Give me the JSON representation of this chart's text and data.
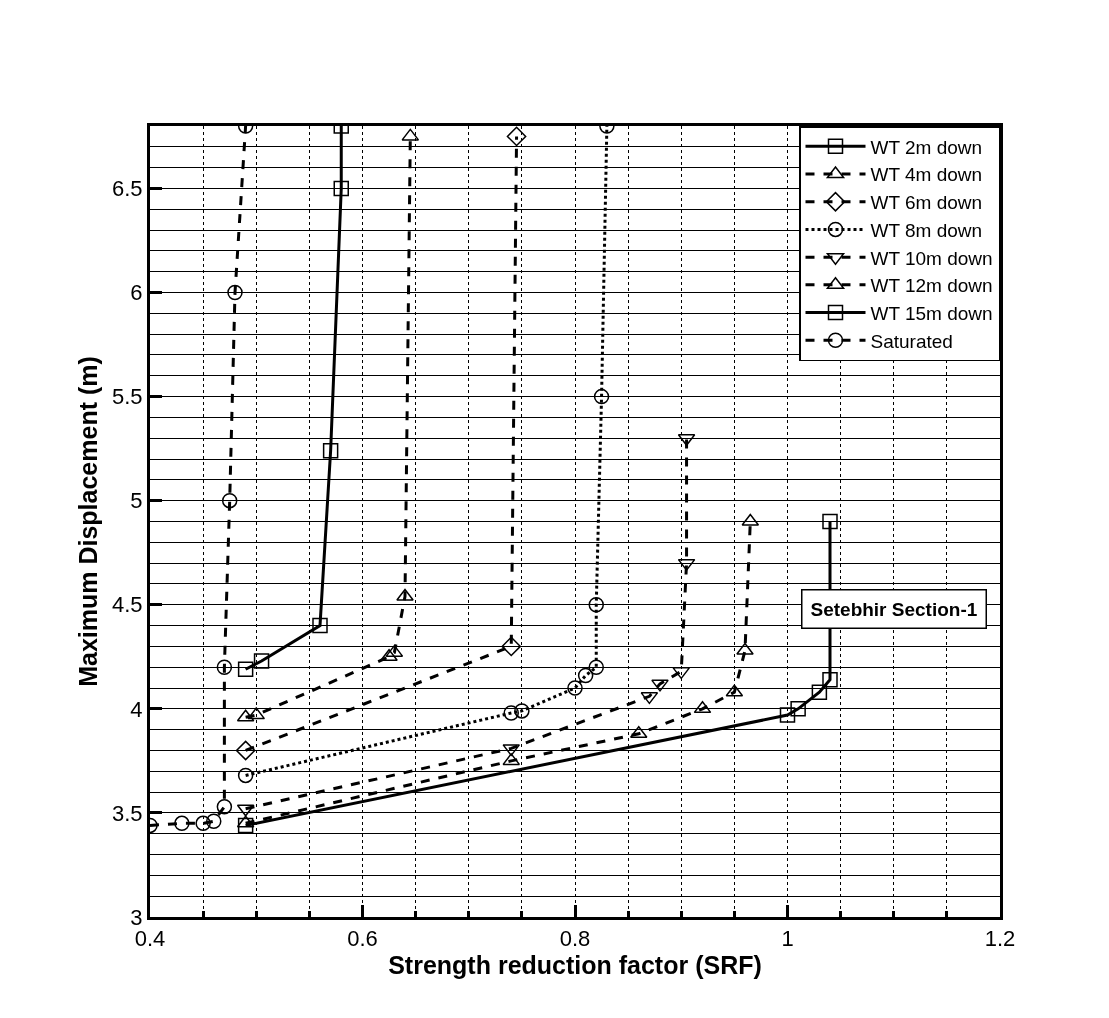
{
  "chart_data": {
    "type": "line",
    "xlabel": "Strength reduction factor (SRF)",
    "ylabel": "Maximum Displacement (m)",
    "xlim": [
      0.4,
      1.2
    ],
    "xticks": [
      0.4,
      0.6,
      0.8,
      1,
      1.2
    ],
    "ylim": [
      3,
      6.8
    ],
    "yticks": [
      3,
      3.5,
      4,
      4.5,
      5,
      5.5,
      6,
      6.5
    ],
    "grid": true,
    "legend": "top right",
    "annotations": [
      "Setebhir Section-1"
    ],
    "series": [
      {
        "name": "WT 2m down",
        "color": "#000000",
        "marker": "square",
        "line_style": "solid",
        "x": [
          0.49,
          0.505,
          0.56,
          0.57,
          0.58,
          0.58
        ],
        "values": [
          4.19,
          4.23,
          4.4,
          5.24,
          6.5,
          6.8
        ]
      },
      {
        "name": "WT 4m down",
        "color": "#000000",
        "marker": "triangle",
        "line_style": "dashed",
        "x": [
          0.49,
          0.5,
          0.625,
          0.63,
          0.64,
          0.645
        ],
        "values": [
          3.96,
          3.97,
          4.25,
          4.27,
          4.54,
          6.75
        ]
      },
      {
        "name": "WT 6m down",
        "color": "#000000",
        "marker": "diamond",
        "line_style": "dashed",
        "x": [
          0.49,
          0.74,
          0.745
        ],
        "values": [
          3.8,
          4.3,
          6.75
        ]
      },
      {
        "name": "WT 8m down",
        "color": "#000000",
        "marker": "circle",
        "line_style": "dotted",
        "x": [
          0.49,
          0.74,
          0.75,
          0.8,
          0.81,
          0.82,
          0.82,
          0.825,
          0.83
        ],
        "values": [
          3.68,
          3.98,
          3.99,
          4.1,
          4.16,
          4.2,
          4.5,
          5.5,
          6.8
        ]
      },
      {
        "name": "WT 10m down",
        "color": "#000000",
        "marker": "triangle-down",
        "line_style": "dashed",
        "x": [
          0.49,
          0.74,
          0.87,
          0.88,
          0.9,
          0.905,
          0.905
        ],
        "values": [
          3.52,
          3.81,
          4.06,
          4.12,
          4.18,
          4.7,
          5.3
        ]
      },
      {
        "name": "WT 12m down",
        "color": "#000000",
        "marker": "triangle",
        "line_style": "dashed",
        "x": [
          0.49,
          0.74,
          0.86,
          0.92,
          0.95,
          0.96,
          0.965
        ],
        "values": [
          3.45,
          3.75,
          3.88,
          4.0,
          4.08,
          4.28,
          4.9
        ]
      },
      {
        "name": "WT 15m down",
        "color": "#000000",
        "marker": "square",
        "line_style": "solid",
        "x": [
          0.49,
          1.0,
          1.01,
          1.03,
          1.04,
          1.04
        ],
        "values": [
          3.44,
          3.97,
          4.0,
          4.08,
          4.14,
          4.9
        ]
      },
      {
        "name": "Saturated",
        "color": "#000000",
        "marker": "circle",
        "line_style": "dashed",
        "x": [
          0.4,
          0.43,
          0.45,
          0.46,
          0.47,
          0.47,
          0.475,
          0.48,
          0.49
        ],
        "values": [
          3.44,
          3.45,
          3.45,
          3.46,
          3.53,
          4.2,
          5.0,
          6.0,
          6.8
        ]
      }
    ]
  }
}
